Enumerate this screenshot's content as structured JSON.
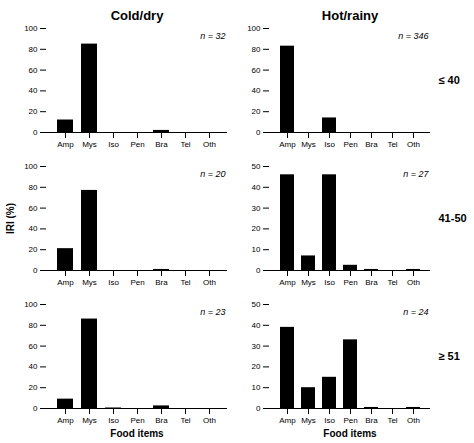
{
  "chart_data": [
    {
      "type": "bar",
      "title": "Cold/dry",
      "categories": [
        "Amp",
        "Mys",
        "Iso",
        "Pen",
        "Bra",
        "Tel",
        "Oth"
      ],
      "values": [
        12,
        85,
        0,
        0,
        2,
        0,
        0
      ],
      "color": "#000000",
      "ylim": [
        0,
        100
      ],
      "yticks": [
        0,
        20,
        40,
        60,
        80,
        100
      ],
      "annotations": [
        "n = 32"
      ]
    },
    {
      "type": "bar",
      "title": "Hot/rainy",
      "categories": [
        "Amp",
        "Mys",
        "Iso",
        "Pen",
        "Bra",
        "Tel",
        "Oth"
      ],
      "values": [
        83,
        0,
        14,
        0,
        0,
        0,
        0
      ],
      "color": "#000000",
      "ylim": [
        0,
        100
      ],
      "yticks": [
        0,
        20,
        40,
        60,
        80,
        100
      ],
      "annotations": [
        "n = 346",
        "≤ 40"
      ]
    },
    {
      "type": "bar",
      "ylabel": "IRI (%)",
      "categories": [
        "Amp",
        "Mys",
        "Iso",
        "Pen",
        "Bra",
        "Tel",
        "Oth"
      ],
      "values": [
        21,
        77,
        0,
        0,
        1,
        0,
        0
      ],
      "color": "#000000",
      "ylim": [
        0,
        100
      ],
      "yticks": [
        0,
        20,
        40,
        60,
        80,
        100
      ],
      "annotations": [
        "n = 20"
      ]
    },
    {
      "type": "bar",
      "categories": [
        "Amp",
        "Mys",
        "Iso",
        "Pen",
        "Bra",
        "Tel",
        "Oth"
      ],
      "values": [
        46,
        7,
        46,
        2.5,
        0.5,
        0,
        0.5
      ],
      "color": "#000000",
      "ylim": [
        0,
        50
      ],
      "yticks": [
        0,
        10,
        20,
        30,
        40,
        50
      ],
      "annotations": [
        "n = 27",
        "41-50"
      ]
    },
    {
      "type": "bar",
      "xlabel": "Food items",
      "categories": [
        "Amp",
        "Mys",
        "Iso",
        "Pen",
        "Bra",
        "Tel",
        "Oth"
      ],
      "values": [
        9,
        86,
        0.5,
        0,
        2.5,
        0,
        0
      ],
      "color": "#000000",
      "ylim": [
        0,
        100
      ],
      "yticks": [
        0,
        20,
        40,
        60,
        80,
        100
      ],
      "annotations": [
        "n = 23"
      ]
    },
    {
      "type": "bar",
      "xlabel": "Food items",
      "categories": [
        "Amp",
        "Mys",
        "Iso",
        "Pen",
        "Bra",
        "Tel",
        "Oth"
      ],
      "values": [
        39,
        10,
        15,
        33,
        0.5,
        0,
        0.5
      ],
      "color": "#000000",
      "ylim": [
        0,
        50
      ],
      "yticks": [
        0,
        10,
        20,
        30,
        40,
        50
      ],
      "annotations": [
        "n = 24",
        "≥ 51"
      ]
    }
  ]
}
